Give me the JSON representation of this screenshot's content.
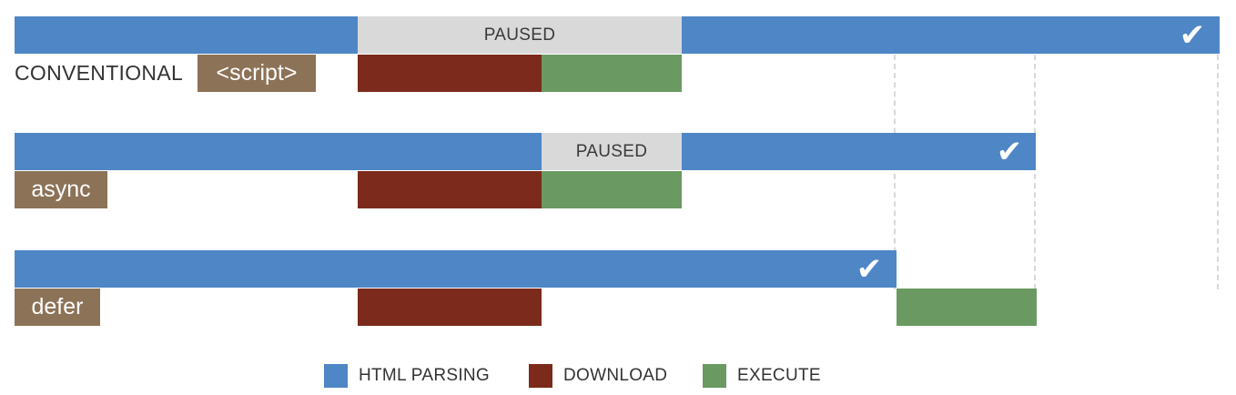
{
  "rows": {
    "conventional": {
      "label": "CONVENTIONAL",
      "tag": "<script>",
      "paused_label": "PAUSED",
      "complete_mark": "✔"
    },
    "async": {
      "tag": "async",
      "paused_label": "PAUSED",
      "complete_mark": "✔"
    },
    "defer": {
      "tag": "defer",
      "complete_mark": "✔"
    }
  },
  "legend": {
    "items": [
      {
        "label": "HTML PARSING",
        "color": "#4f86c6"
      },
      {
        "label": "DOWNLOAD",
        "color": "#7b2a1b"
      },
      {
        "label": "EXECUTE",
        "color": "#6a9a62"
      }
    ]
  },
  "colors": {
    "html_parsing": "#4f86c6",
    "download": "#7b2a1b",
    "execute": "#6a9a62",
    "paused": "#d9d9d9",
    "tag": "#8c7257"
  }
}
